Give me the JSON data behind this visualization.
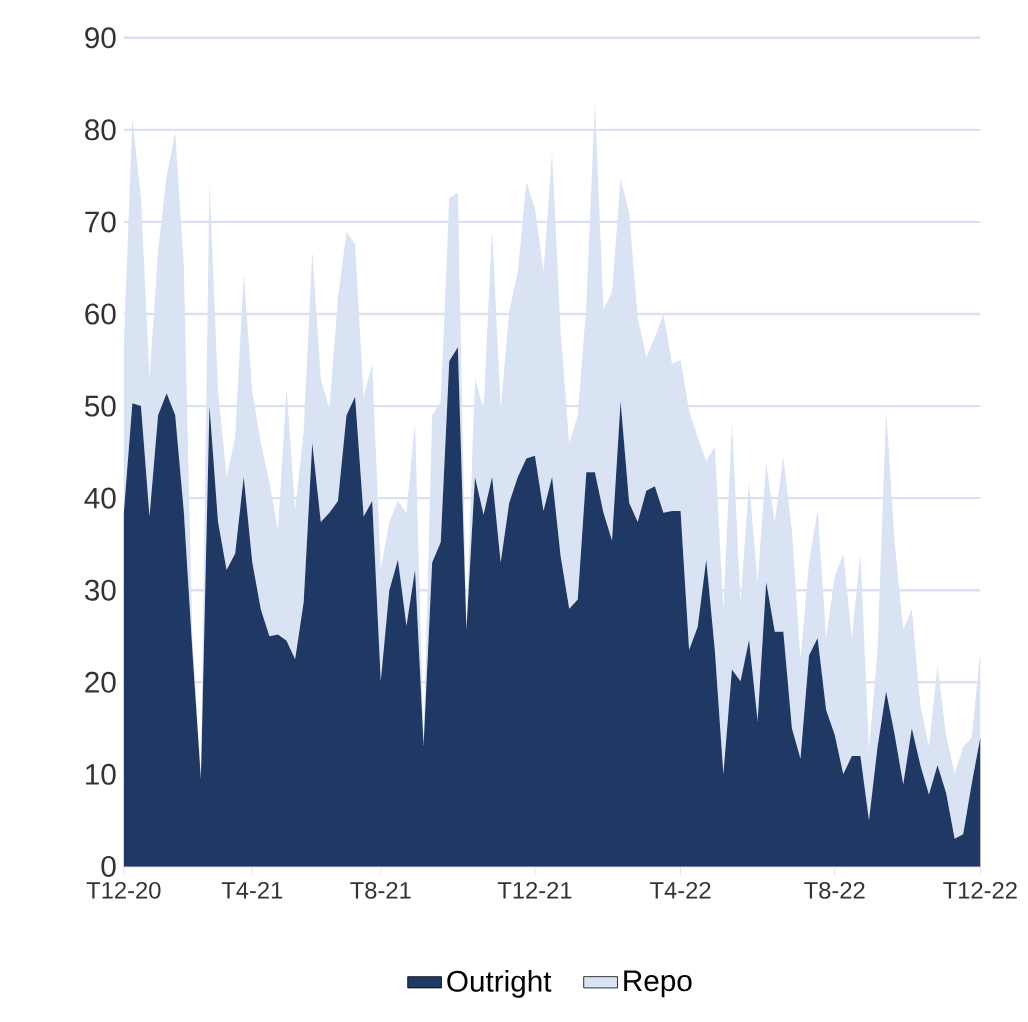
{
  "chart_data": {
    "type": "area",
    "stacked": true,
    "grid": "y",
    "legend": "bottom",
    "ylim": [
      0,
      90
    ],
    "yticks": [
      0,
      10,
      20,
      30,
      40,
      50,
      60,
      70,
      80,
      90
    ],
    "categories": [
      "T12-20",
      null,
      null,
      null,
      null,
      null,
      null,
      null,
      null,
      null,
      null,
      null,
      null,
      null,
      null,
      "T4-21",
      null,
      null,
      null,
      null,
      null,
      null,
      null,
      null,
      null,
      null,
      null,
      null,
      null,
      null,
      "T8-21",
      null,
      null,
      null,
      null,
      null,
      null,
      null,
      null,
      null,
      null,
      null,
      null,
      null,
      null,
      null,
      null,
      null,
      "T12-21",
      null,
      null,
      null,
      null,
      null,
      null,
      null,
      null,
      null,
      null,
      null,
      null,
      null,
      null,
      null,
      null,
      "T4-22",
      null,
      null,
      null,
      null,
      null,
      null,
      null,
      null,
      null,
      null,
      null,
      null,
      null,
      null,
      null,
      null,
      null,
      "T8-22",
      null,
      null,
      null,
      null,
      null,
      null,
      null,
      null,
      null,
      null,
      null,
      null,
      null,
      null,
      null,
      null,
      "T12-22"
    ],
    "series": [
      {
        "name": "Outright",
        "color": "#203864",
        "values": [
          38.4,
          50.3,
          50,
          38,
          49,
          51.4,
          49,
          38.6,
          23.5,
          9.5,
          50,
          37.4,
          32.2,
          34,
          42.3,
          33,
          27.9,
          25,
          25.2,
          24.5,
          22.5,
          28.7,
          46,
          37.4,
          38.4,
          39.7,
          49,
          51,
          38,
          39.7,
          20.1,
          30,
          33.3,
          26.1,
          32.2,
          13.2,
          33,
          35.2,
          54.9,
          56.4,
          25.7,
          42.3,
          38.2,
          42.3,
          33,
          39.5,
          42.3,
          44.3,
          44.6,
          38.6,
          42.3,
          33.7,
          28,
          29,
          42.8,
          42.8,
          38.4,
          35.4,
          50.5,
          39.5,
          37.4,
          40.8,
          41.3,
          38.4,
          38.6,
          38.6,
          23.5,
          26,
          33.3,
          23.5,
          10,
          21.4,
          20.1,
          24.6,
          15.8,
          30.9,
          25.5,
          25.5,
          15,
          11.7,
          22.9,
          24.8,
          17,
          14.3,
          10,
          12,
          12,
          5,
          13,
          19,
          14.3,
          8.9,
          15,
          11,
          7.8,
          11,
          8,
          3,
          3.5,
          9,
          14
        ]
      },
      {
        "name": "Repo",
        "color": "#dae3f3",
        "values": [
          18.4,
          30.9,
          22.6,
          15,
          17.8,
          23.6,
          30.7,
          26.8,
          1.5,
          0.5,
          24.3,
          14.2,
          10.1,
          12.6,
          22.1,
          18.6,
          18.1,
          16.7,
          11.3,
          27.5,
          16.2,
          18.6,
          20.8,
          15.6,
          11.3,
          22.1,
          19.9,
          16.6,
          13,
          14.9,
          12.1,
          7.4,
          6.4,
          12.3,
          16,
          0.5,
          16,
          15.3,
          17.7,
          16.8,
          0.5,
          10.7,
          11.5,
          27,
          16.7,
          20.8,
          22.3,
          30,
          26.9,
          26,
          35.2,
          24.4,
          18,
          20,
          18.2,
          40.2,
          22.1,
          27,
          24.2,
          31.5,
          22.2,
          14.5,
          16.2,
          21.6,
          16,
          16.4,
          26,
          20.6,
          10.7,
          22.1,
          18,
          26.8,
          8.6,
          17.1,
          15.1,
          12.9,
          11.9,
          19,
          21.5,
          10.8,
          10.1,
          13.9,
          7.8,
          17.2,
          24,
          12.8,
          22,
          7.7,
          10.5,
          30.5,
          20.9,
          16.8,
          13,
          6.5,
          5.2,
          10.8,
          6.3,
          7,
          9.5,
          5,
          9.3
        ]
      }
    ]
  }
}
